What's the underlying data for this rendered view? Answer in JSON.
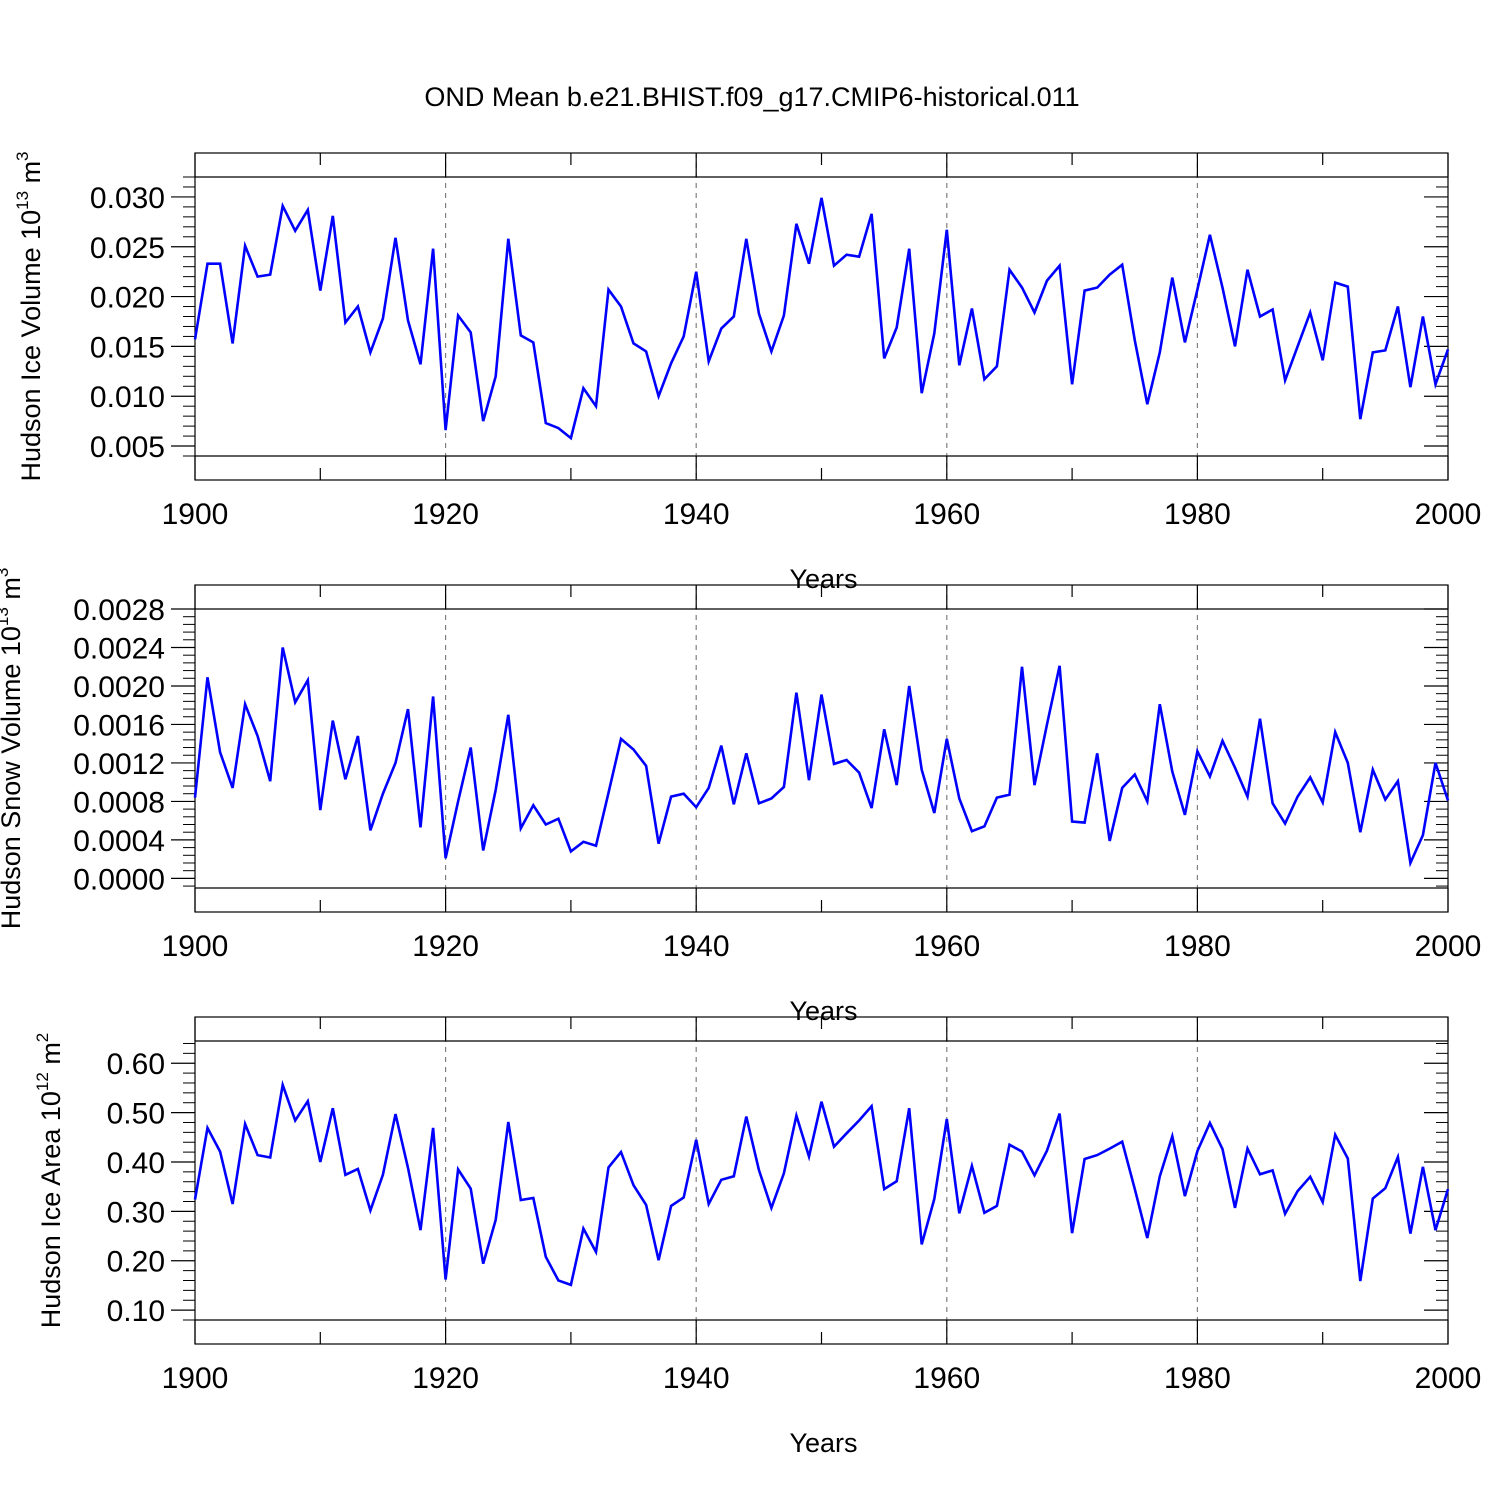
{
  "title": "OND Mean b.e21.BHIST.f09_g17.CMIP6-historical.011",
  "colors": {
    "series": "#0000ff",
    "axis": "#000000",
    "grid": "#808080"
  },
  "chart_data": [
    {
      "type": "line",
      "name": "ice-volume",
      "xlabel": "Years",
      "ylabel": {
        "text": "Hudson Ice Volume 10",
        "exp": "13",
        "unit": " m",
        "unit_exp": "3"
      },
      "xlim": [
        1900,
        2000
      ],
      "ylim": [
        0.004,
        0.032
      ],
      "xticks": [
        "1900",
        "1920",
        "1940",
        "1960",
        "1980",
        "2000"
      ],
      "yticks": [
        "0.005",
        "0.010",
        "0.015",
        "0.020",
        "0.025",
        "0.030"
      ],
      "ytick_values": [
        0.005,
        0.01,
        0.015,
        0.02,
        0.025,
        0.03
      ],
      "x_start": 1900,
      "values": [
        0.0157,
        0.0233,
        0.0233,
        0.0153,
        0.0251,
        0.022,
        0.0222,
        0.0291,
        0.0266,
        0.0287,
        0.0206,
        0.0281,
        0.0174,
        0.019,
        0.0144,
        0.0178,
        0.0259,
        0.0176,
        0.0132,
        0.0248,
        0.0066,
        0.0181,
        0.0164,
        0.0075,
        0.012,
        0.0258,
        0.0161,
        0.0154,
        0.0073,
        0.0068,
        0.0058,
        0.0108,
        0.009,
        0.0207,
        0.019,
        0.0153,
        0.0145,
        0.01,
        0.0133,
        0.016,
        0.0225,
        0.0135,
        0.0168,
        0.018,
        0.0258,
        0.0183,
        0.0145,
        0.0181,
        0.0273,
        0.0233,
        0.0299,
        0.0231,
        0.0242,
        0.024,
        0.0283,
        0.0138,
        0.0169,
        0.0248,
        0.0103,
        0.0163,
        0.0267,
        0.0131,
        0.0188,
        0.0117,
        0.013,
        0.0227,
        0.0209,
        0.0184,
        0.0216,
        0.0231,
        0.0112,
        0.0206,
        0.0209,
        0.0222,
        0.0232,
        0.0156,
        0.0092,
        0.0144,
        0.0219,
        0.0154,
        0.0207,
        0.0262,
        0.0209,
        0.015,
        0.0227,
        0.018,
        0.0187,
        0.0116,
        0.015,
        0.0184,
        0.0136,
        0.0214,
        0.021,
        0.0077,
        0.0144,
        0.0146,
        0.019,
        0.0109,
        0.018,
        0.0112,
        0.0147
      ]
    },
    {
      "type": "line",
      "name": "snow-volume",
      "xlabel": "Years",
      "ylabel": {
        "text": "Hudson Snow Volume 10",
        "exp": "13",
        "unit": " m",
        "unit_exp": "3"
      },
      "xlim": [
        1900,
        2000
      ],
      "ylim": [
        -0.0001,
        0.0028
      ],
      "xticks": [
        "1900",
        "1920",
        "1940",
        "1960",
        "1980",
        "2000"
      ],
      "yticks": [
        "0.0000",
        "0.0004",
        "0.0008",
        "0.0012",
        "0.0016",
        "0.0020",
        "0.0024",
        "0.0028"
      ],
      "ytick_values": [
        0.0,
        0.0004,
        0.0008,
        0.0012,
        0.0016,
        0.002,
        0.0024,
        0.0028
      ],
      "x_start": 1900,
      "values": [
        0.00084,
        0.00209,
        0.00131,
        0.00094,
        0.00181,
        0.00148,
        0.00101,
        0.0024,
        0.00183,
        0.00206,
        0.00071,
        0.00164,
        0.00103,
        0.00148,
        0.0005,
        0.00088,
        0.0012,
        0.00176,
        0.00053,
        0.00189,
        0.00021,
        0.0008,
        0.00136,
        0.00029,
        0.00092,
        0.0017,
        0.00052,
        0.00076,
        0.00056,
        0.00062,
        0.00028,
        0.00038,
        0.00034,
        0.00089,
        0.00145,
        0.00134,
        0.00117,
        0.00036,
        0.00085,
        0.00088,
        0.00074,
        0.00094,
        0.00138,
        0.00077,
        0.0013,
        0.00078,
        0.00083,
        0.00095,
        0.00193,
        0.00102,
        0.00191,
        0.00119,
        0.00123,
        0.0011,
        0.00073,
        0.00155,
        0.00097,
        0.002,
        0.00113,
        0.00068,
        0.00145,
        0.00083,
        0.00049,
        0.00054,
        0.00084,
        0.00087,
        0.0022,
        0.00097,
        0.0016,
        0.00221,
        0.00059,
        0.00058,
        0.0013,
        0.00039,
        0.00094,
        0.00108,
        0.0008,
        0.00181,
        0.00111,
        0.00066,
        0.00132,
        0.00106,
        0.00143,
        0.00115,
        0.00085,
        0.00166,
        0.00078,
        0.00057,
        0.00085,
        0.00105,
        0.00079,
        0.00152,
        0.0012,
        0.00048,
        0.00113,
        0.00082,
        0.00101,
        0.00016,
        0.00045,
        0.0012,
        0.00081
      ]
    },
    {
      "type": "line",
      "name": "ice-area",
      "xlabel": "Years",
      "ylabel": {
        "text": "Hudson Ice Area 10",
        "exp": "12",
        "unit": " m",
        "unit_exp": "2"
      },
      "xlim": [
        1900,
        2000
      ],
      "ylim": [
        0.08,
        0.645
      ],
      "xticks": [
        "1900",
        "1920",
        "1940",
        "1960",
        "1980",
        "2000"
      ],
      "yticks": [
        "0.10",
        "0.20",
        "0.30",
        "0.40",
        "0.50",
        "0.60"
      ],
      "ytick_values": [
        0.1,
        0.2,
        0.3,
        0.4,
        0.5,
        0.6
      ],
      "x_start": 1900,
      "values": [
        0.324,
        0.469,
        0.421,
        0.315,
        0.477,
        0.414,
        0.409,
        0.556,
        0.484,
        0.523,
        0.4,
        0.509,
        0.374,
        0.386,
        0.302,
        0.374,
        0.497,
        0.388,
        0.262,
        0.469,
        0.162,
        0.385,
        0.346,
        0.194,
        0.283,
        0.481,
        0.323,
        0.327,
        0.208,
        0.16,
        0.151,
        0.265,
        0.218,
        0.389,
        0.42,
        0.353,
        0.313,
        0.201,
        0.311,
        0.328,
        0.445,
        0.315,
        0.364,
        0.371,
        0.492,
        0.384,
        0.307,
        0.377,
        0.494,
        0.411,
        0.522,
        0.431,
        0.458,
        0.484,
        0.513,
        0.345,
        0.361,
        0.509,
        0.233,
        0.325,
        0.487,
        0.296,
        0.392,
        0.297,
        0.311,
        0.435,
        0.421,
        0.373,
        0.423,
        0.498,
        0.256,
        0.406,
        0.414,
        0.427,
        0.441,
        0.345,
        0.246,
        0.371,
        0.452,
        0.331,
        0.422,
        0.479,
        0.426,
        0.307,
        0.427,
        0.375,
        0.383,
        0.295,
        0.341,
        0.37,
        0.319,
        0.455,
        0.407,
        0.159,
        0.326,
        0.347,
        0.41,
        0.255,
        0.39,
        0.262,
        0.345
      ]
    }
  ]
}
